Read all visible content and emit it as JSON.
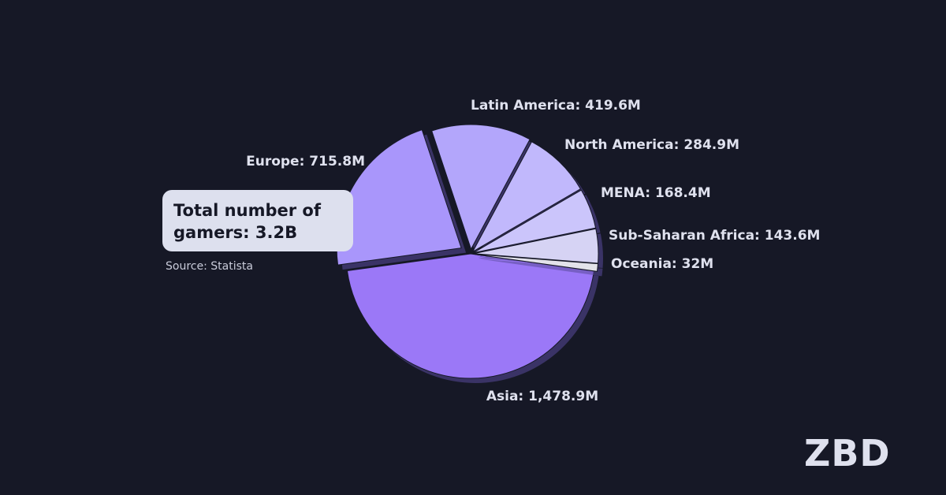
{
  "chart_data": {
    "type": "pie",
    "values": [
      1478.9,
      715.8,
      419.6,
      284.9,
      168.4,
      143.6,
      32
    ],
    "value_labels": [
      "Asia: 1,478.9M",
      "Europe: 715.8M",
      "Latin America: 419.6M",
      "North America: 284.9M",
      "MENA: 168.4M",
      "Sub-Saharan Africa: 143.6M",
      "Oceania: 32M"
    ],
    "colors": [
      "#9b78f7",
      "#a996fb",
      "#b3a6fb",
      "#c1b8fc",
      "#cbc5fb",
      "#d6d3f4",
      "#e3e3ea"
    ],
    "annotation": "Total number of gamers: 3.2B",
    "source": "Source: Statista",
    "logo": "ZBD"
  }
}
